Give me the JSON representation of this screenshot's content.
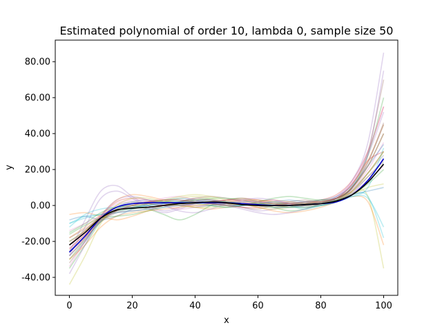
{
  "chart_data": {
    "type": "line",
    "title": "Estimated polynomial of order 10, lambda 0, sample size 50",
    "xlabel": "x",
    "ylabel": "y",
    "xlim": [
      -4.5,
      104.5
    ],
    "ylim": [
      -50,
      92
    ],
    "xticks": [
      0,
      20,
      40,
      60,
      80,
      100
    ],
    "xtick_labels": [
      "0",
      "20",
      "40",
      "60",
      "80",
      "100"
    ],
    "yticks": [
      -40,
      -20,
      0,
      20,
      40,
      60,
      80
    ],
    "ytick_labels": [
      "-40.00",
      "-20.00",
      "0.00",
      "20.00",
      "40.00",
      "60.00",
      "80.00"
    ],
    "grid": false,
    "legend": "none",
    "x": [
      0,
      5,
      10,
      15,
      20,
      25,
      30,
      35,
      40,
      45,
      50,
      55,
      60,
      65,
      70,
      75,
      80,
      85,
      90,
      95,
      100
    ],
    "mean_series": {
      "color": "#0000cc",
      "values": [
        -26,
        -17,
        -7,
        -1,
        1,
        1.5,
        1.5,
        1.5,
        1.5,
        1.5,
        1.5,
        1,
        0.5,
        0,
        0,
        0.5,
        1,
        2,
        6,
        14,
        26
      ]
    },
    "true_series": {
      "color": "#000000",
      "values": [
        -22,
        -15,
        -7,
        -2.5,
        -1.5,
        -1,
        0,
        1,
        1.5,
        2,
        1.5,
        0.5,
        0,
        0,
        0,
        0.5,
        1,
        2.5,
        6,
        13,
        23
      ]
    },
    "series": [
      {
        "color": "#1f77b4",
        "values": [
          -30,
          -20,
          -8,
          -1,
          2,
          3,
          2,
          1,
          2,
          3,
          2,
          1,
          0,
          1,
          2,
          1,
          0,
          2,
          8,
          18,
          30
        ]
      },
      {
        "color": "#ff7f0e",
        "values": [
          -18,
          -12,
          -5,
          3,
          6,
          5,
          3,
          1,
          -1,
          -2,
          -1,
          0,
          2,
          3,
          2,
          1,
          2,
          4,
          12,
          25,
          45
        ]
      },
      {
        "color": "#2ca02c",
        "values": [
          -35,
          -22,
          -9,
          -2,
          0,
          -2,
          -5,
          -8,
          -5,
          0,
          3,
          4,
          2,
          -1,
          -3,
          -2,
          1,
          4,
          10,
          22,
          40
        ]
      },
      {
        "color": "#d62728",
        "values": [
          -28,
          -18,
          -6,
          2,
          4,
          3,
          1,
          0,
          1,
          2,
          3,
          4,
          3,
          1,
          0,
          1,
          3,
          6,
          14,
          30,
          55
        ]
      },
      {
        "color": "#9467bd",
        "values": [
          -26,
          -8,
          8,
          11,
          5,
          0,
          -3,
          -1,
          2,
          3,
          1,
          -1,
          -3,
          -2,
          0,
          2,
          3,
          4,
          10,
          28,
          75
        ]
      },
      {
        "color": "#8c564b",
        "values": [
          -32,
          -20,
          -7,
          0,
          2,
          1,
          0,
          2,
          4,
          3,
          1,
          -1,
          -2,
          0,
          2,
          3,
          2,
          3,
          11,
          30,
          70
        ]
      },
      {
        "color": "#e377c2",
        "values": [
          -24,
          -16,
          -7,
          -2,
          0,
          2,
          4,
          5,
          3,
          1,
          0,
          1,
          2,
          3,
          1,
          -1,
          0,
          3,
          9,
          20,
          35
        ]
      },
      {
        "color": "#7f7f7f",
        "values": [
          -20,
          -14,
          -6,
          -1,
          1,
          2,
          2,
          1,
          0,
          0,
          1,
          2,
          3,
          2,
          1,
          0,
          1,
          3,
          10,
          24,
          45
        ]
      },
      {
        "color": "#bcbd22",
        "values": [
          -30,
          -19,
          -8,
          -3,
          -2,
          0,
          2,
          4,
          5,
          4,
          2,
          1,
          0,
          -1,
          0,
          2,
          3,
          4,
          7,
          5,
          -35
        ]
      },
      {
        "color": "#17becf",
        "values": [
          -10,
          -6,
          -5,
          -3,
          -2,
          0,
          2,
          3,
          2,
          0,
          -1,
          0,
          1,
          2,
          0,
          -2,
          0,
          3,
          6,
          5,
          -18
        ]
      },
      {
        "color": "#1f77b4",
        "values": [
          -8,
          -6,
          -8,
          -6,
          -2,
          1,
          3,
          4,
          3,
          1,
          0,
          0,
          1,
          2,
          3,
          2,
          1,
          3,
          6,
          8,
          10
        ]
      },
      {
        "color": "#ff7f0e",
        "values": [
          -5,
          -4,
          -6,
          -8,
          -6,
          -3,
          0,
          2,
          3,
          3,
          2,
          1,
          -1,
          -3,
          -4,
          -3,
          -1,
          2,
          5,
          2,
          -22
        ]
      },
      {
        "color": "#2ca02c",
        "values": [
          -15,
          -10,
          -4,
          -1,
          0,
          1,
          2,
          2,
          1,
          0,
          -1,
          0,
          2,
          4,
          5,
          4,
          3,
          4,
          10,
          28,
          60
        ]
      },
      {
        "color": "#d62728",
        "values": [
          -22,
          -14,
          -6,
          -1,
          1,
          1,
          0,
          0,
          1,
          2,
          3,
          3,
          2,
          1,
          0,
          0,
          1,
          4,
          12,
          25,
          30
        ]
      },
      {
        "color": "#9467bd",
        "values": [
          -28,
          -12,
          4,
          8,
          4,
          -1,
          -4,
          -2,
          1,
          2,
          0,
          -2,
          -4,
          -5,
          -4,
          -2,
          1,
          5,
          14,
          35,
          85
        ]
      },
      {
        "color": "#8c564b",
        "values": [
          -18,
          -13,
          -7,
          -4,
          -3,
          -2,
          0,
          2,
          4,
          5,
          4,
          2,
          0,
          -1,
          -1,
          0,
          2,
          4,
          8,
          16,
          25
        ]
      },
      {
        "color": "#e377c2",
        "values": [
          -34,
          -20,
          -6,
          1,
          3,
          2,
          0,
          -2,
          -1,
          1,
          2,
          2,
          1,
          0,
          -1,
          0,
          2,
          5,
          13,
          30,
          55
        ]
      },
      {
        "color": "#7f7f7f",
        "values": [
          -25,
          -17,
          -8,
          -2,
          1,
          2,
          1,
          0,
          -1,
          0,
          1,
          2,
          2,
          1,
          1,
          1,
          2,
          4,
          9,
          18,
          28
        ]
      },
      {
        "color": "#bcbd22",
        "values": [
          -20,
          -14,
          -7,
          -3,
          -1,
          1,
          3,
          5,
          6,
          5,
          3,
          1,
          -1,
          -2,
          -1,
          1,
          2,
          3,
          6,
          10,
          12
        ]
      },
      {
        "color": "#17becf",
        "values": [
          -12,
          -5,
          -2,
          -1,
          -1,
          0,
          1,
          2,
          2,
          1,
          0,
          0,
          1,
          1,
          0,
          -1,
          0,
          2,
          5,
          10,
          32
        ]
      },
      {
        "color": "#1f77b4",
        "values": [
          -28,
          -19,
          -9,
          -3,
          -1,
          0,
          1,
          2,
          3,
          3,
          2,
          1,
          0,
          0,
          1,
          2,
          3,
          5,
          11,
          22,
          34
        ]
      },
      {
        "color": "#ff7f0e",
        "values": [
          -30,
          -22,
          -12,
          -6,
          -4,
          -3,
          -2,
          -1,
          0,
          1,
          2,
          3,
          3,
          2,
          1,
          0,
          1,
          3,
          8,
          18,
          30
        ]
      },
      {
        "color": "#2ca02c",
        "values": [
          -16,
          -11,
          -7,
          -6,
          -5,
          -3,
          -1,
          1,
          3,
          4,
          4,
          3,
          1,
          0,
          -1,
          -1,
          0,
          2,
          6,
          12,
          20
        ]
      },
      {
        "color": "#d62728",
        "values": [
          -24,
          -16,
          -8,
          -3,
          0,
          2,
          3,
          3,
          2,
          1,
          0,
          -1,
          -1,
          0,
          1,
          2,
          2,
          4,
          10,
          22,
          40
        ]
      },
      {
        "color": "#9467bd",
        "values": [
          -38,
          -22,
          -6,
          3,
          5,
          3,
          0,
          -3,
          -4,
          -2,
          1,
          3,
          4,
          3,
          1,
          0,
          1,
          4,
          12,
          28,
          52
        ]
      },
      {
        "color": "#8c564b",
        "values": [
          -26,
          -18,
          -9,
          -3,
          0,
          2,
          3,
          3,
          2,
          1,
          1,
          1,
          1,
          1,
          1,
          1,
          2,
          4,
          10,
          24,
          46
        ]
      },
      {
        "color": "#e377c2",
        "values": [
          -14,
          -10,
          -6,
          -4,
          -3,
          -2,
          -1,
          0,
          1,
          2,
          3,
          3,
          2,
          1,
          0,
          0,
          1,
          3,
          7,
          14,
          22
        ]
      },
      {
        "color": "#7f7f7f",
        "values": [
          -20,
          -15,
          -9,
          -4,
          -1,
          1,
          2,
          2,
          2,
          1,
          1,
          0,
          0,
          0,
          0,
          1,
          2,
          3,
          7,
          16,
          24
        ]
      },
      {
        "color": "#bcbd22",
        "values": [
          -44,
          -28,
          -10,
          0,
          4,
          4,
          2,
          0,
          -1,
          -1,
          0,
          1,
          1,
          1,
          0,
          0,
          1,
          3,
          8,
          18,
          30
        ]
      },
      {
        "color": "#17becf",
        "values": [
          -10,
          -7,
          -5,
          -4,
          -3,
          -2,
          -1,
          0,
          1,
          2,
          2,
          1,
          0,
          -1,
          -1,
          0,
          1,
          3,
          5,
          4,
          -12
        ]
      }
    ]
  }
}
